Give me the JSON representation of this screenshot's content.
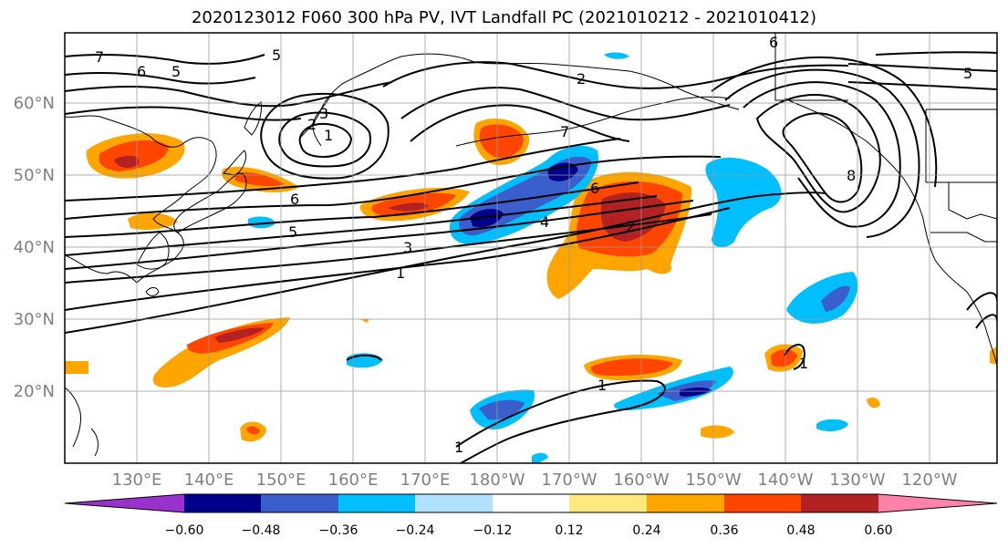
{
  "title": "2020123012 F060 300 hPa PV, IVT Landfall PC (2021010212 - 2021010412)",
  "map": {
    "lat_labels": [
      "60°N",
      "50°N",
      "40°N",
      "30°N",
      "20°N"
    ],
    "lon_labels": [
      "130°E",
      "140°E",
      "150°E",
      "160°E",
      "170°E",
      "180°W",
      "170°W",
      "160°W",
      "150°W",
      "140°W",
      "130°W",
      "120°W"
    ],
    "contour_labels": [
      "7",
      "6",
      "5",
      "5",
      "3",
      "2",
      "1",
      "6",
      "5",
      "3",
      "1",
      "4",
      "2",
      "7",
      "6",
      "5",
      "8",
      "2",
      "1",
      "1",
      "1",
      "6"
    ]
  },
  "colorbar": {
    "ticks": [
      "−0.60",
      "−0.48",
      "−0.36",
      "−0.24",
      "−0.12",
      "0.12",
      "0.24",
      "0.36",
      "0.48",
      "0.60"
    ],
    "colors": [
      "#9932cc",
      "#00008b",
      "#3a5fcd",
      "#00bfff",
      "#b0e2ff",
      "#ffffff",
      "#ffe97f",
      "#ffa500",
      "#ff4500",
      "#b22222",
      "#ff82ab"
    ]
  }
}
